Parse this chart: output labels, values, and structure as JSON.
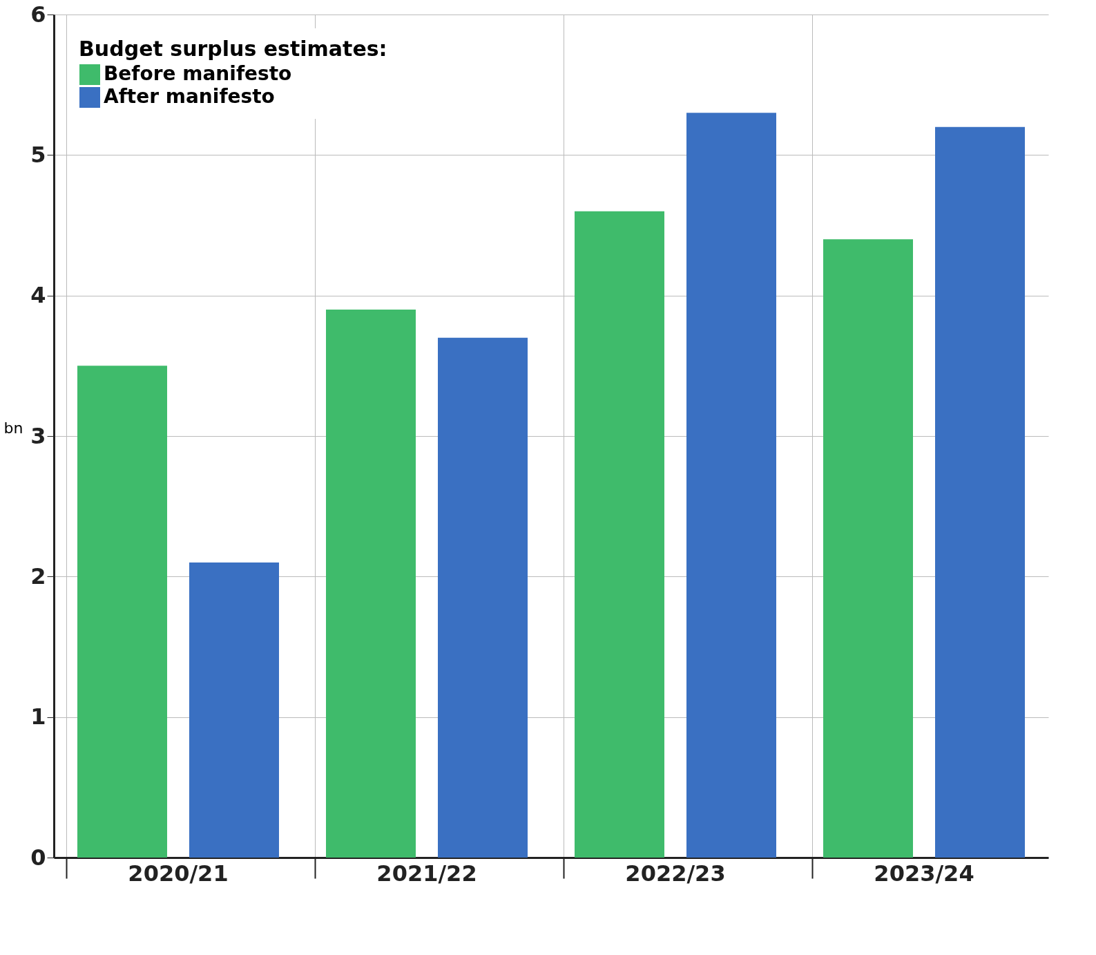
{
  "chart_data": {
    "type": "bar",
    "ylabel": "bn",
    "legend_title": "Budget surplus estimates:",
    "categories": [
      "2020/21",
      "2021/22",
      "2022/23",
      "2023/24"
    ],
    "series": [
      {
        "name": "Before manifesto",
        "color": "#3fbb6b",
        "values": [
          3.5,
          3.9,
          4.6,
          4.4
        ]
      },
      {
        "name": "After manifesto",
        "color": "#3a70c2",
        "values": [
          2.1,
          3.7,
          5.3,
          5.2
        ]
      }
    ],
    "ylim": [
      0,
      6
    ],
    "yticks": [
      0,
      1,
      2,
      3,
      4,
      5,
      6
    ],
    "grid": true,
    "legend": "top left"
  }
}
